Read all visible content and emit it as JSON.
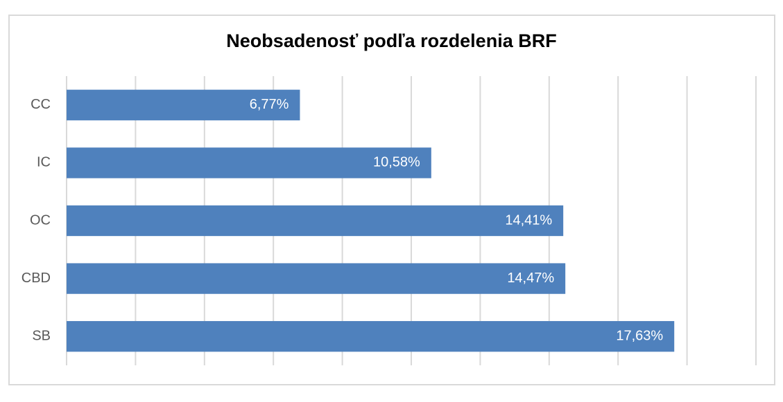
{
  "chart_data": {
    "type": "bar",
    "orientation": "horizontal",
    "title": "Neobsadenosť podľa rozdelenia BRF",
    "categories": [
      "CC",
      "IC",
      "OC",
      "CBD",
      "SB"
    ],
    "values": [
      6.77,
      10.58,
      14.41,
      14.47,
      17.63
    ],
    "data_labels": [
      "6,77%",
      "10,58%",
      "14,41%",
      "14,47%",
      "17,63%"
    ],
    "xlim": [
      0,
      20
    ],
    "grid": true,
    "legend": "none",
    "bar_color": "#4f81bd",
    "grid_color": "#d9d9d9"
  }
}
